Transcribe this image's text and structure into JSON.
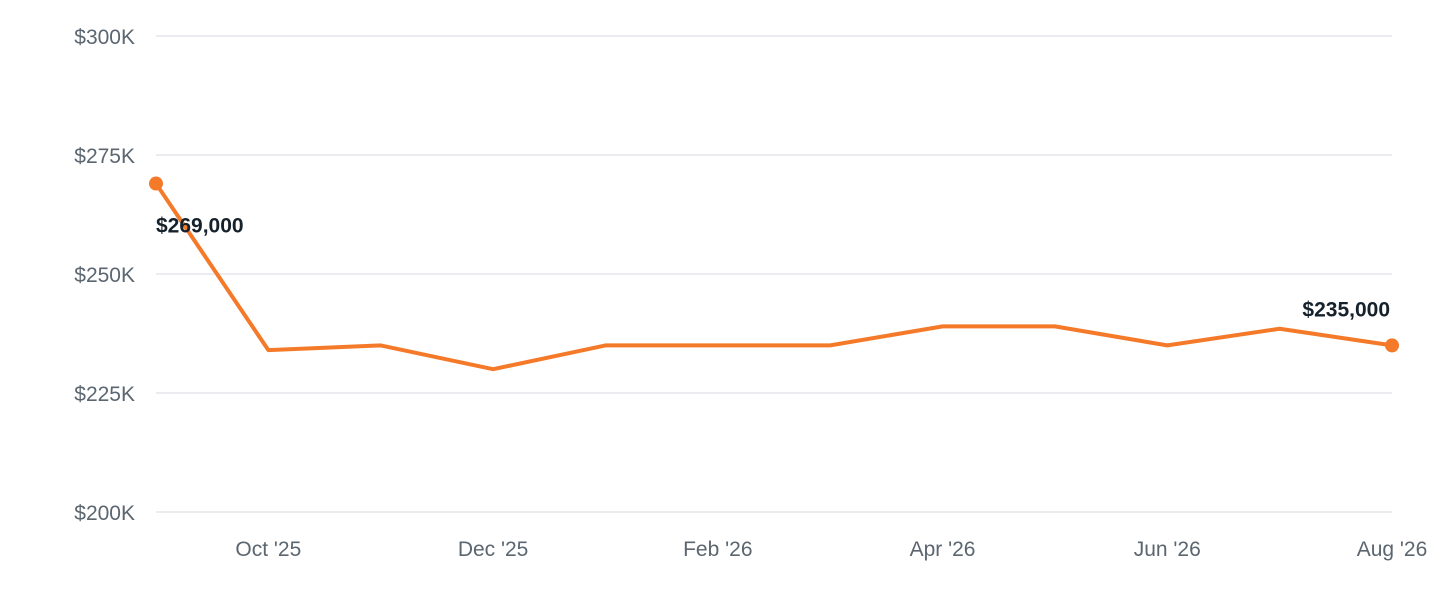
{
  "chart_data": {
    "type": "line",
    "title": "",
    "xlabel": "",
    "ylabel": "",
    "ylim": [
      200000,
      300000
    ],
    "y_ticks": [
      {
        "value": 200000,
        "label": "$200K"
      },
      {
        "value": 225000,
        "label": "$225K"
      },
      {
        "value": 250000,
        "label": "$250K"
      },
      {
        "value": 275000,
        "label": "$275K"
      },
      {
        "value": 300000,
        "label": "$300K"
      }
    ],
    "x": [
      "2025-09",
      "2025-10",
      "2025-11",
      "2025-12",
      "2026-01",
      "2026-02",
      "2026-03",
      "2026-04",
      "2026-05",
      "2026-06",
      "2026-07",
      "2026-08"
    ],
    "x_ticks": [
      {
        "x": "2025-10",
        "label": "Oct '25"
      },
      {
        "x": "2025-12",
        "label": "Dec '25"
      },
      {
        "x": "2026-02",
        "label": "Feb '26"
      },
      {
        "x": "2026-04",
        "label": "Apr '26"
      },
      {
        "x": "2026-06",
        "label": "Jun '26"
      },
      {
        "x": "2026-08",
        "label": "Aug '26"
      }
    ],
    "series": [
      {
        "values": [
          269000,
          234000,
          235000,
          230000,
          235000,
          235000,
          235000,
          239000,
          239000,
          235000,
          238500,
          235000
        ],
        "color": "#f47a2a"
      }
    ],
    "annotations": [
      {
        "x": "2025-09",
        "text": "$269,000"
      },
      {
        "x": "2026-08",
        "text": "$235,000"
      }
    ],
    "grid": true,
    "legend": "none"
  }
}
